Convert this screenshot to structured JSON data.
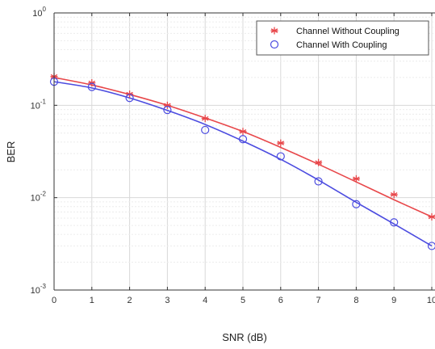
{
  "chart_data": {
    "type": "line",
    "title": "",
    "xlabel": "SNR (dB)",
    "ylabel": "BER",
    "y_scale": "log",
    "xlim": [
      0,
      10
    ],
    "ylim": [
      0.001,
      1
    ],
    "x_ticks": [
      "0",
      "1",
      "2",
      "3",
      "4",
      "5",
      "6",
      "7",
      "8",
      "9",
      "10"
    ],
    "y_ticks": [
      {
        "base": "10",
        "exp": "-3",
        "value": 0.001
      },
      {
        "base": "10",
        "exp": "-2",
        "value": 0.01
      },
      {
        "base": "10",
        "exp": "-1",
        "value": 0.1
      },
      {
        "base": "10",
        "exp": "0",
        "value": 1
      }
    ],
    "grid": true,
    "minor_grid": true,
    "legend_position": "top-right",
    "series": [
      {
        "name": "Channel Without Coupling",
        "color": "#e8474a",
        "marker": "asterisk",
        "x": [
          0,
          1,
          2,
          3,
          4,
          5,
          6,
          7,
          8,
          9,
          10
        ],
        "markers": [
          0.205,
          0.175,
          0.132,
          0.1,
          0.072,
          0.052,
          0.039,
          0.024,
          0.016,
          0.0108,
          0.0062
        ],
        "curve": [
          0.2,
          0.166,
          0.131,
          0.1,
          0.073,
          0.052,
          0.035,
          0.023,
          0.0148,
          0.0095,
          0.0062
        ]
      },
      {
        "name": "Channel With Coupling",
        "color": "#4c4ce0",
        "marker": "circle",
        "x": [
          0,
          1,
          2,
          3,
          4,
          5,
          6,
          7,
          8,
          9,
          10
        ],
        "markers": [
          0.18,
          0.158,
          0.12,
          0.089,
          0.054,
          0.043,
          0.028,
          0.015,
          0.0085,
          0.0054,
          0.003
        ],
        "curve": [
          0.18,
          0.154,
          0.12,
          0.088,
          0.062,
          0.041,
          0.026,
          0.0155,
          0.0089,
          0.0052,
          0.003
        ]
      }
    ]
  }
}
